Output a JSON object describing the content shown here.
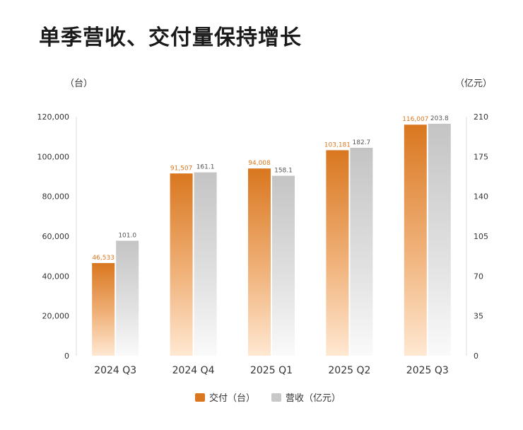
{
  "title": "单季营收、交付量保持增长",
  "chart_data": {
    "type": "bar",
    "categories": [
      "2024 Q3",
      "2024 Q4",
      "2025 Q1",
      "2025 Q2",
      "2025 Q3"
    ],
    "series": [
      {
        "name": "交付（台）",
        "axis": "left",
        "values": [
          46533,
          91507,
          94008,
          103181,
          116007
        ],
        "labels": [
          "46,533",
          "91,507",
          "94,008",
          "103,181",
          "116,007"
        ],
        "color": "#D9771F"
      },
      {
        "name": "营收（亿元）",
        "axis": "right",
        "values": [
          101.0,
          161.1,
          158.1,
          182.7,
          203.8
        ],
        "labels": [
          "101.0",
          "161.1",
          "158.1",
          "182.7",
          "203.8"
        ],
        "color": "#C8C8C8"
      }
    ],
    "y_left": {
      "unit_label": "（台）",
      "ylim": [
        0,
        120000
      ],
      "ticks": [
        0,
        20000,
        40000,
        60000,
        80000,
        100000,
        120000
      ],
      "tick_labels": [
        "0",
        "20,000",
        "40,000",
        "60,000",
        "80,000",
        "100,000",
        "120,000"
      ]
    },
    "y_right": {
      "unit_label": "（亿元）",
      "ylim": [
        0,
        210
      ],
      "ticks": [
        0,
        35,
        70,
        105,
        140,
        175,
        210
      ],
      "tick_labels": [
        "0",
        "35",
        "70",
        "105",
        "140",
        "175",
        "210"
      ]
    },
    "grid": false,
    "legend_position": "bottom-center"
  }
}
